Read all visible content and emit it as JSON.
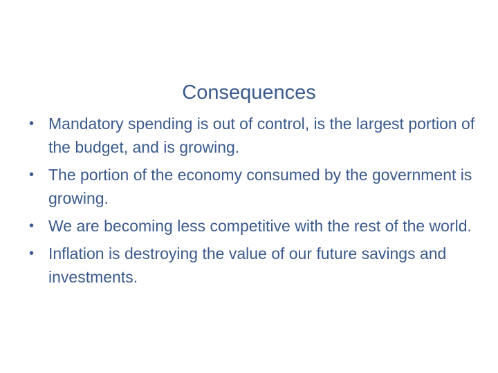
{
  "slide": {
    "title": "Consequences",
    "bullet_symbol": "•",
    "bullets": [
      "Mandatory spending is out of control, is the largest portion of the budget, and is growing.",
      "The portion of the economy consumed by the government is growing.",
      "We are becoming less competitive with the rest of the world.",
      "Inflation is destroying the value of our future savings and investments."
    ],
    "text_color": "#3a5a8c",
    "background_color": "#ffffff"
  }
}
